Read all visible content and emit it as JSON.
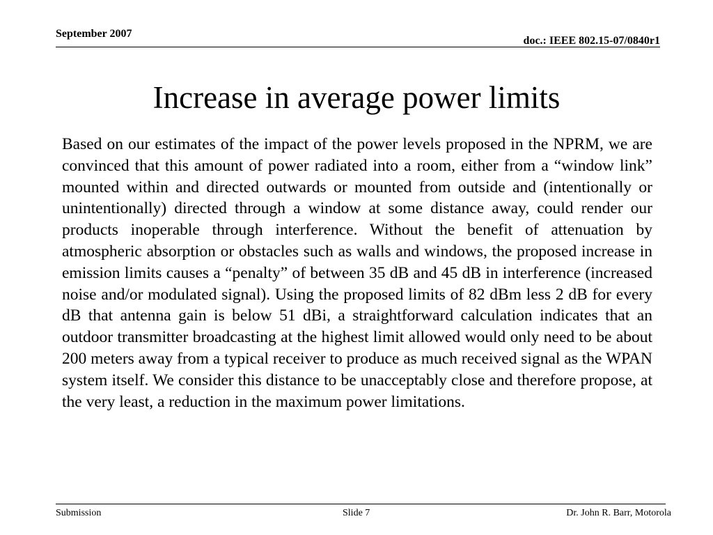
{
  "header": {
    "date": "September 2007",
    "doc_id": "doc.: IEEE 802.15-07/0840r1"
  },
  "slide": {
    "title": "Increase in average power limits",
    "body": "Based on our estimates of the impact of the power levels proposed in the NPRM, we are convinced that this amount of power radiated into a room, either from a “window link” mounted within and directed outwards or mounted from outside and (intentionally or unintentionally) directed through a window at some distance away, could render our products inoperable through interference. Without the benefit of attenuation by atmospheric absorption or obstacles such as walls and windows, the proposed increase in emission limits causes a “penalty” of between 35 dB and 45 dB in interference (increased noise and/or modulated signal). Using the proposed limits of 82 dBm less 2 dB for every dB that antenna gain is below 51 dBi, a straightforward calculation indicates that an outdoor transmitter broadcasting at the highest limit allowed would only need to be about 200 meters away from a typical receiver to produce as much received signal as the WPAN system itself. We consider this distance to be unacceptably close and therefore propose, at the very least, a reduction in the maximum power limitations."
  },
  "footer": {
    "left": "Submission",
    "center": "Slide 7",
    "right": "Dr. John R. Barr, Motorola"
  }
}
